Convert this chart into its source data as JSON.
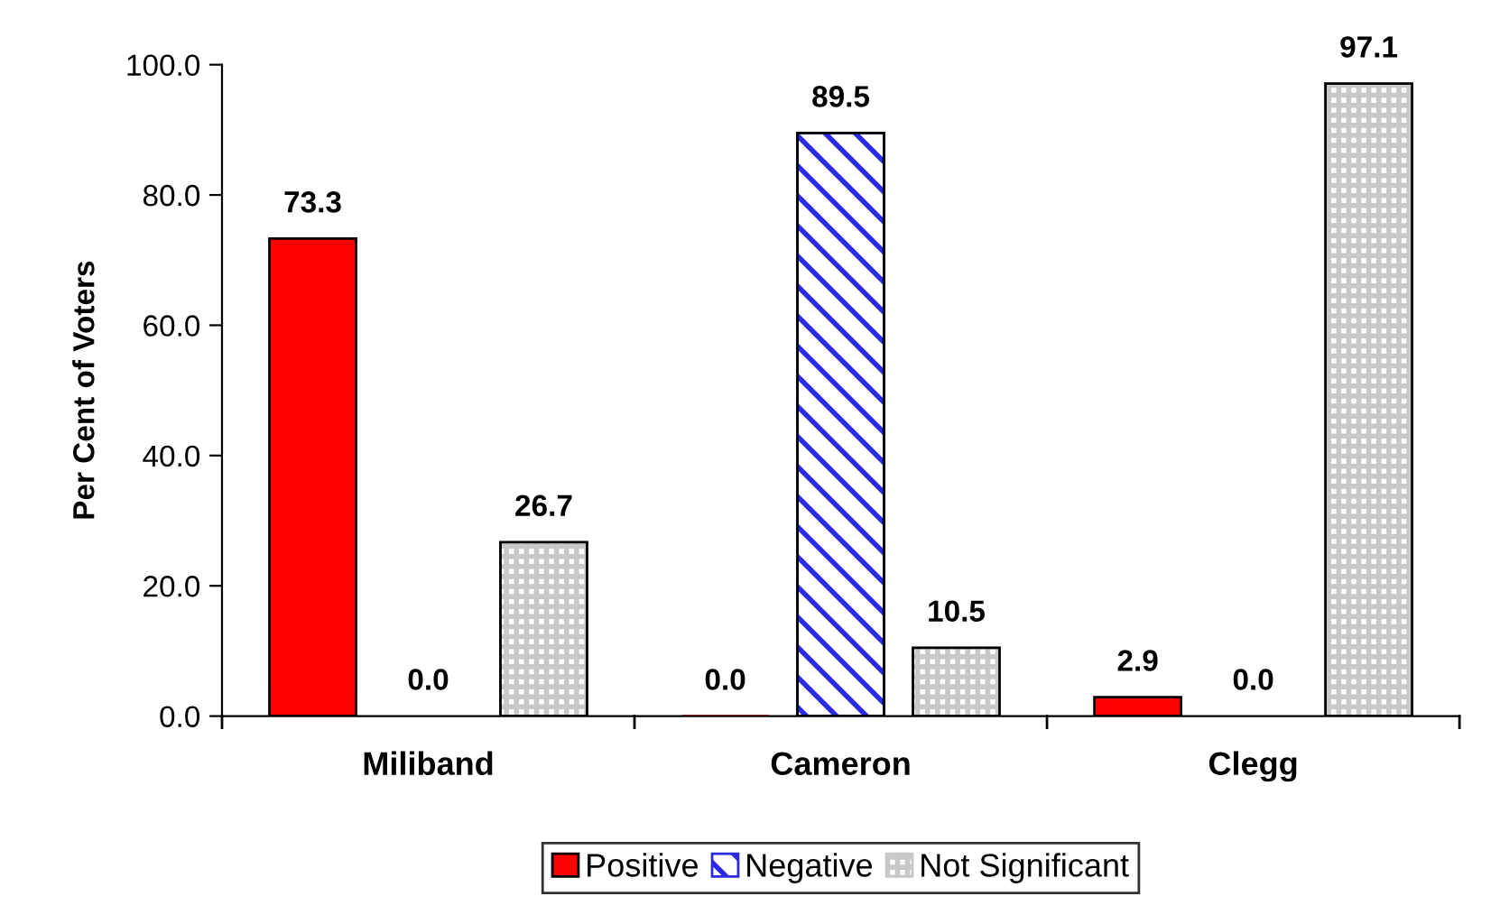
{
  "chart_data": {
    "type": "bar",
    "ylabel": "Per Cent of Voters",
    "categories": [
      "Miliband",
      "Cameron",
      "Clegg"
    ],
    "series": [
      {
        "name": "Positive",
        "color": "#ff0000",
        "values": [
          73.3,
          0.0,
          2.9
        ],
        "value_labels": [
          "73.3",
          "0.0",
          "2.9"
        ]
      },
      {
        "name": "Negative",
        "color": "#2a2ae0",
        "values": [
          0.0,
          89.5,
          0.0
        ],
        "value_labels": [
          "0.0",
          "89.5",
          "0.0"
        ]
      },
      {
        "name": "Not Significant",
        "color": "#c8c8c8",
        "values": [
          26.7,
          10.5,
          97.1
        ],
        "value_labels": [
          "26.7",
          "10.5",
          "97.1"
        ]
      }
    ],
    "ylim": [
      0,
      100
    ],
    "yticks": [
      {
        "value": 0,
        "label": "0.0"
      },
      {
        "value": 20,
        "label": "20.0"
      },
      {
        "value": 40,
        "label": "40.0"
      },
      {
        "value": 60,
        "label": "60.0"
      },
      {
        "value": 80,
        "label": "80.0"
      },
      {
        "value": 100,
        "label": "100.0"
      }
    ],
    "legend": "bottom",
    "grid": false
  }
}
